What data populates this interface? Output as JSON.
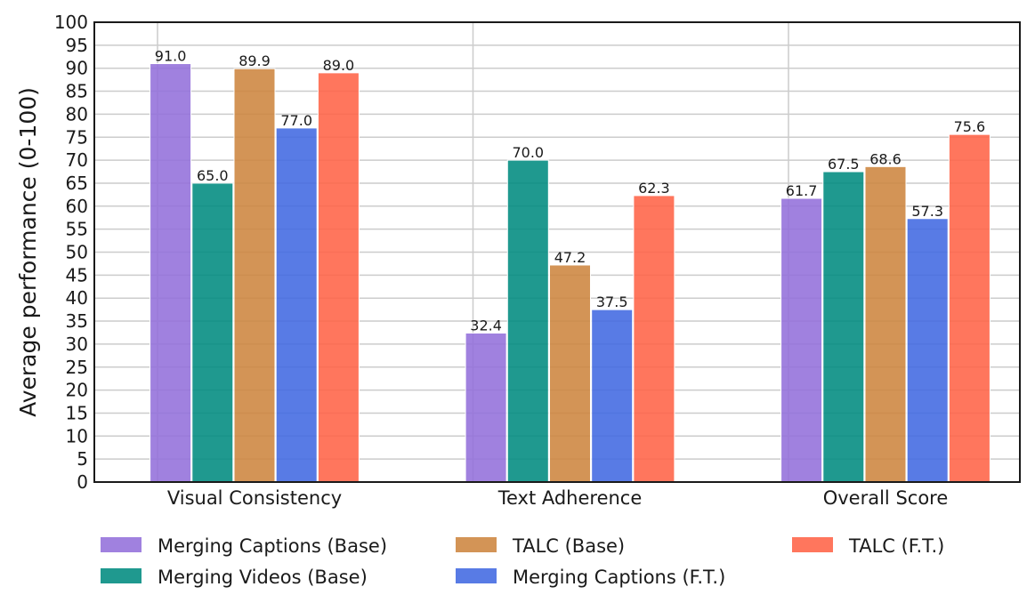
{
  "chart_data": {
    "type": "bar",
    "categories": [
      "Visual Consistency",
      "Text Adherence",
      "Overall Score"
    ],
    "series": [
      {
        "name": "Merging Captions (Base)",
        "color": "#9370db",
        "values": [
          91.0,
          32.4,
          61.7
        ]
      },
      {
        "name": "Merging Videos (Base)",
        "color": "#008b80",
        "values": [
          65.0,
          70.0,
          67.5
        ]
      },
      {
        "name": "TALC (Base)",
        "color": "#cd853f",
        "values": [
          89.9,
          47.2,
          68.6
        ]
      },
      {
        "name": "Merging Captions (F.T.)",
        "color": "#4169e1",
        "values": [
          77.0,
          37.5,
          57.3
        ]
      },
      {
        "name": "TALC (F.T.)",
        "color": "#ff6347",
        "values": [
          89.0,
          62.3,
          75.6
        ]
      }
    ],
    "value_labels": [
      [
        "91.0",
        "32.4",
        "61.7"
      ],
      [
        "65.0",
        "70.0",
        "67.5"
      ],
      [
        "89.9",
        "47.2",
        "68.6"
      ],
      [
        "77.0",
        "37.5",
        "57.3"
      ],
      [
        "89.0",
        "62.3",
        "75.6"
      ]
    ],
    "ylabel": "Average performance (0-100)",
    "xlabel": "",
    "ylim": [
      0,
      100
    ],
    "ytick_step": 5,
    "grid": true,
    "legend_position": "bottom"
  }
}
